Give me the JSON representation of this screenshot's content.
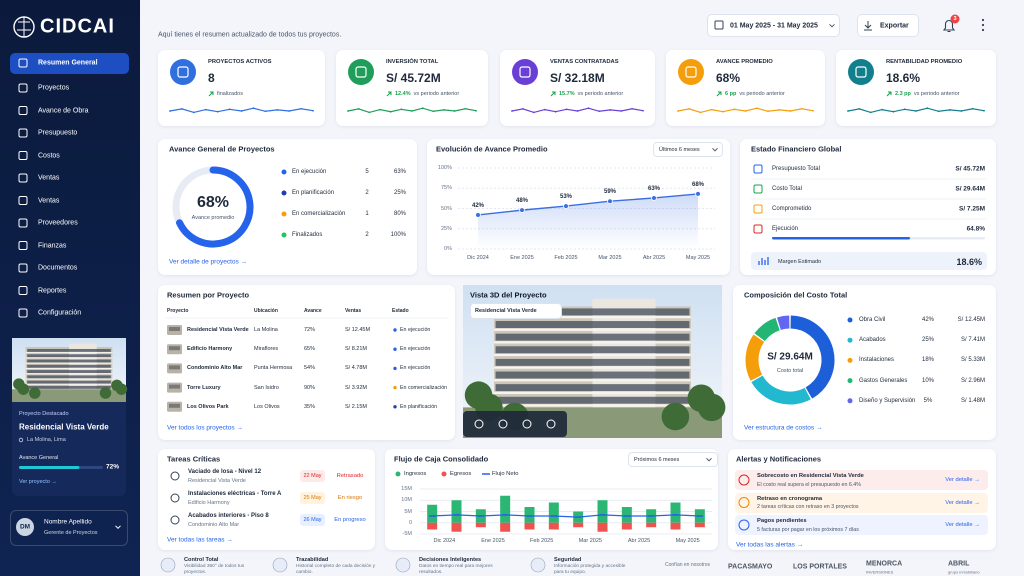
{
  "sidebar": {
    "logo": "CIDCAI",
    "nav": [
      "Resumen General",
      "Proyectos",
      "Avance de Obra",
      "Presupuesto",
      "Costos",
      "Ventas",
      "Ventas",
      "Proveedores",
      "Finanzas",
      "Documentos",
      "Reportes",
      "Configuración"
    ],
    "featured": {
      "label": "Proyecto Destacado",
      "name": "Residencial Vista Verde",
      "location": "La Molina, Lima",
      "progress_title": "Avance General",
      "progress": 72,
      "progress_label": "72%",
      "link": "Ver proyecto →"
    },
    "user": {
      "initials": "DM",
      "name": "Nombre Apellido",
      "role": "Gerente de Proyectos"
    }
  },
  "header": {
    "subtitle": "Aquí tienes el resumen actualizado de todos tus proyectos.",
    "date_range": "01 May 2025 - 31 May 2025",
    "export": "Exportar",
    "notifications": "3"
  },
  "kpis": [
    {
      "title": "PROYECTOS ACTIVOS",
      "value": "8",
      "note": "finalizados",
      "color": "#2f6fe0"
    },
    {
      "title": "INVERSIÓN TOTAL",
      "value": "S/ 45.72M",
      "delta": "12.4%",
      "note": "vs periodo anterior",
      "color": "#1e9e5a"
    },
    {
      "title": "VENTAS CONTRATADAS",
      "value": "S/ 32.18M",
      "delta": "15.7%",
      "note": "vs periodo anterior",
      "color": "#6a3fd6"
    },
    {
      "title": "AVANCE PROMEDIO",
      "value": "68%",
      "delta": "6 pp",
      "note": "vs periodo anterior",
      "color": "#f59e0b"
    },
    {
      "title": "RENTABILIDAD PROMEDIO",
      "value": "18.6%",
      "delta": "2.3 pp",
      "note": "vs periodo anterior",
      "color": "#127f8c"
    }
  ],
  "progress_overview": {
    "title": "Avance General de Proyectos",
    "value": 68,
    "value_label": "68%",
    "caption": "Avance promedio",
    "color": "#2563eb",
    "rows": [
      {
        "name": "En ejecución",
        "count": "5",
        "share": "63%",
        "color": "#2563eb"
      },
      {
        "name": "En planificación",
        "count": "2",
        "share": "25%",
        "color": "#1e40af"
      },
      {
        "name": "En comercialización",
        "count": "1",
        "share": "80%",
        "color": "#f59e0b"
      },
      {
        "name": "Finalizados",
        "count": "2",
        "share": "100%",
        "color": "#22c55e"
      }
    ],
    "link": "Ver detalle de proyectos →"
  },
  "progress_chart": {
    "type": "line",
    "title": "Evolución de Avance Promedio",
    "filter": "Últimos 6 meses",
    "categories": [
      "Dic 2024",
      "Ene 2025",
      "Feb 2025",
      "Mar 2025",
      "Abr 2025",
      "May 2025"
    ],
    "values": [
      42,
      48,
      53,
      59,
      63,
      68
    ],
    "value_labels": [
      "42%",
      "48%",
      "53%",
      "59%",
      "63%",
      "68%"
    ],
    "ylim": [
      0,
      100
    ],
    "yticks": [
      {
        "value": 0,
        "label": "0%"
      },
      {
        "value": 25,
        "label": "25%"
      },
      {
        "value": 50,
        "label": "50%"
      },
      {
        "value": 75,
        "label": "75%"
      },
      {
        "value": 100,
        "label": "100%"
      }
    ],
    "color": "#3b6fe0",
    "grid": true
  },
  "finance": {
    "title": "Estado Financiero Global",
    "rows": [
      {
        "label": "Presupuesto Total",
        "value": "S/ 45.72M",
        "color": "#2563eb"
      },
      {
        "label": "Costo Total",
        "value": "S/ 29.64M",
        "color": "#16a34a"
      },
      {
        "label": "Comprometido",
        "value": "S/ 7.25M",
        "color": "#f59e0b"
      }
    ],
    "execution": {
      "label": "Ejecución",
      "value": 64.8,
      "value_label": "64.8%",
      "color": "#2563eb"
    },
    "margin": {
      "label": "Margen Estimado",
      "value": "18.6%"
    }
  },
  "projects_table": {
    "title": "Resumen por Proyecto",
    "columns": [
      "Proyecto",
      "Ubicación",
      "Avance",
      "Ventas",
      "Estado"
    ],
    "rows": [
      [
        "Residencial Vista Verde",
        "La Molina",
        "72%",
        "S/ 12.45M",
        "En ejecución"
      ],
      [
        "Edificio Harmony",
        "Miraflores",
        "65%",
        "S/ 8.21M",
        "En ejecución"
      ],
      [
        "Condominio Alto Mar",
        "Punta Hermosa",
        "54%",
        "S/ 4.78M",
        "En ejecución"
      ],
      [
        "Torre Luxury",
        "San Isidro",
        "90%",
        "S/ 3.92M",
        "En comercialización"
      ],
      [
        "Los Olivos Park",
        "Los Olivos",
        "35%",
        "S/ 2.15M",
        "En planificación"
      ]
    ],
    "status_colors": [
      "#2563eb",
      "#2563eb",
      "#2563eb",
      "#f59e0b",
      "#1e40af"
    ],
    "link": "Ver todos los proyectos →"
  },
  "view3d": {
    "title": "Vista 3D del Proyecto",
    "selector": "Residencial Vista Verde"
  },
  "cost_composition": {
    "type": "pie",
    "title": "Composición del Costo Total",
    "center_value": "S/ 29.64M",
    "center_label": "Costo total",
    "categories": [
      "Obra Civil",
      "Acabados",
      "Instalaciones",
      "Gastos Generales",
      "Diseño y Supervisión"
    ],
    "values": [
      42,
      25,
      18,
      10,
      5
    ],
    "value_labels": [
      "42%",
      "25%",
      "18%",
      "10%",
      "5%"
    ],
    "amounts": [
      "S/ 12.45M",
      "S/ 7.41M",
      "S/ 5.33M",
      "S/ 2.96M",
      "S/ 1.48M"
    ],
    "colors": [
      "#1d5fd8",
      "#22b8cf",
      "#f59e0b",
      "#22b573",
      "#6366f1"
    ],
    "link": "Ver estructura de costos →"
  },
  "tasks": {
    "title": "Tareas Críticas",
    "items": [
      {
        "title": "Vaciado de losa - Nivel 12",
        "project": "Residencial Vista Verde",
        "date": "22 May",
        "status": "Retrasado",
        "color": "#dc2626",
        "bg": "#fdeaea"
      },
      {
        "title": "Instalaciones eléctricas - Torre A",
        "project": "Edificio Harmony",
        "date": "25 May",
        "status": "En riesgo",
        "color": "#d97706",
        "bg": "#fff3e0"
      },
      {
        "title": "Acabados interiores - Piso 8",
        "project": "Condominio Alto Mar",
        "date": "26 May",
        "status": "En progreso",
        "color": "#2563eb",
        "bg": "#e8efff"
      }
    ],
    "link": "Ver todas las tareas →"
  },
  "cash_flow": {
    "type": "bar",
    "title": "Flujo de Caja Consolidado",
    "filter": "Próximos 6 meses",
    "categories": [
      "Dic 2024",
      null,
      "Ene 2025",
      null,
      "Feb 2025",
      null,
      "Mar 2025",
      null,
      "Abr 2025",
      null,
      "May 2025",
      null
    ],
    "series": [
      {
        "name": "Ingresos",
        "color": "#2bb673",
        "values": [
          8,
          10,
          6,
          12,
          7,
          9,
          5,
          10,
          7,
          6,
          9,
          6
        ]
      },
      {
        "name": "Egresos",
        "color": "#ef5350",
        "values": [
          -3,
          -4,
          -2,
          -4,
          -3,
          -3,
          -2,
          -4,
          -3,
          -2,
          -3,
          -2
        ]
      },
      {
        "name": "Flujo Neto",
        "color": "#2563eb",
        "values": [
          3,
          3.5,
          3,
          3.5,
          3,
          3,
          2.5,
          3.5,
          3,
          3,
          3.5,
          3
        ]
      }
    ],
    "ylim": [
      -5,
      15
    ],
    "yticks": [
      {
        "value": -5,
        "label": "-5M"
      },
      0,
      {
        "value": 5,
        "label": "5M"
      },
      {
        "value": 10,
        "label": "10M"
      },
      {
        "value": 15,
        "label": "15M"
      }
    ]
  },
  "alerts": {
    "title": "Alertas y Notificaciones",
    "items": [
      {
        "title": "Sobrecosto en Residencial Vista Verde",
        "detail": "El costo real supera el presupuesto en 6.4%",
        "action": "Ver detalle →",
        "color": "#dc2626",
        "bg": "#fdecec"
      },
      {
        "title": "Retraso en cronograma",
        "detail": "2 tareas críticas con retraso en 3 proyectos",
        "action": "Ver detalle →",
        "color": "#ea8a0c",
        "bg": "#fff4e6"
      },
      {
        "title": "Pagos pendientes",
        "detail": "5 facturas por pagar en los próximos 7 días",
        "action": "Ver detalle →",
        "color": "#2563eb",
        "bg": "#eef3ff"
      }
    ],
    "link": "Ver todas las alertas →"
  },
  "footer": {
    "features": [
      {
        "title": "Control Total",
        "text": "Visibilidad 360° de todos tus proyectos."
      },
      {
        "title": "Trazabilidad",
        "text": "Historial completo de cada decisión y cambio."
      },
      {
        "title": "Decisiones Inteligentes",
        "text": "Datos en tiempo real para mejores resultados."
      },
      {
        "title": "Seguridad",
        "text": "Información protegida y accesible para tu equipo."
      }
    ],
    "trust": "Confían en nosotros",
    "partners": [
      {
        "name": "PACASMAYO"
      },
      {
        "name": "LOS PORTALES"
      },
      {
        "name": "MENORCA",
        "sub": "INVERSIONES"
      },
      {
        "name": "ABRIL",
        "sub": "grupo inmobiliario"
      }
    ]
  }
}
